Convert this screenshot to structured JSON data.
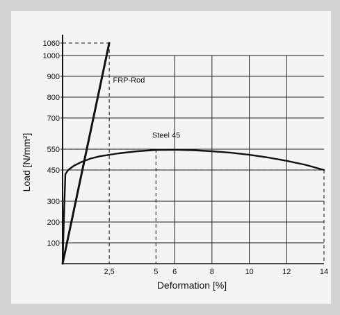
{
  "chart_data": {
    "type": "line",
    "xlabel": "Deformation [%]",
    "ylabel": "Load [N/mm²]",
    "xlim": [
      0,
      14
    ],
    "ylim": [
      0,
      1100
    ],
    "x_ticks": [
      {
        "value": 2.5,
        "label": "2,5"
      },
      {
        "value": 5,
        "label": "5"
      },
      {
        "value": 6,
        "label": "6"
      },
      {
        "value": 8,
        "label": "8"
      },
      {
        "value": 10,
        "label": "10"
      },
      {
        "value": 12,
        "label": "12"
      },
      {
        "value": 14,
        "label": "14"
      }
    ],
    "y_ticks": [
      {
        "value": 100,
        "label": "100"
      },
      {
        "value": 200,
        "label": "200"
      },
      {
        "value": 300,
        "label": "300"
      },
      {
        "value": 450,
        "label": "450"
      },
      {
        "value": 550,
        "label": "550"
      },
      {
        "value": 700,
        "label": "700"
      },
      {
        "value": 800,
        "label": "800"
      },
      {
        "value": 900,
        "label": "900"
      },
      {
        "value": 1000,
        "label": "1000"
      },
      {
        "value": 1060,
        "label": "1060"
      }
    ],
    "grid": true,
    "series": [
      {
        "name": "FRP-Rod",
        "points": [
          [
            0,
            0
          ],
          [
            2.5,
            1060
          ]
        ],
        "label_at": [
          2.7,
          870
        ]
      },
      {
        "name": "Steel 45",
        "points": [
          [
            0,
            0
          ],
          [
            0.1,
            300
          ],
          [
            0.15,
            430
          ],
          [
            0.3,
            450
          ],
          [
            0.6,
            470
          ],
          [
            1,
            488
          ],
          [
            1.5,
            505
          ],
          [
            2,
            516
          ],
          [
            3,
            530
          ],
          [
            4,
            540
          ],
          [
            5,
            546
          ],
          [
            6,
            547
          ],
          [
            7,
            545
          ],
          [
            8,
            540
          ],
          [
            9,
            533
          ],
          [
            10,
            523
          ],
          [
            11,
            510
          ],
          [
            12,
            494
          ],
          [
            13,
            475
          ],
          [
            14,
            450
          ]
        ],
        "label_at": [
          4.8,
          605
        ]
      }
    ],
    "reference_lines": [
      {
        "x": 2.5,
        "y": 1060
      },
      {
        "x": 5,
        "y": 550
      },
      {
        "x": 14,
        "y": 450
      }
    ]
  }
}
